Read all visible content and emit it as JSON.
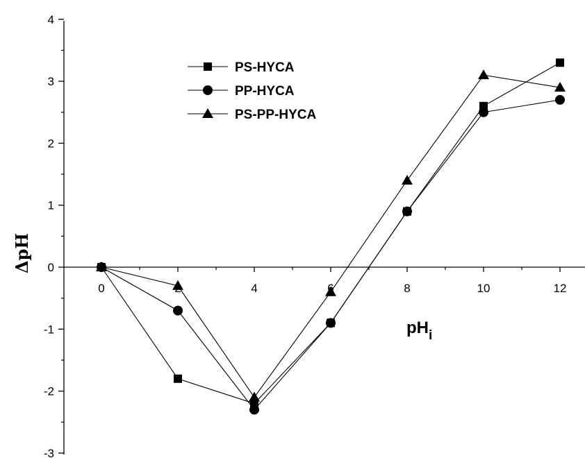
{
  "chart_data": {
    "type": "line",
    "xlabel": "pH",
    "xlabel_subscript": "i",
    "ylabel": "ΔpH",
    "xlim": [
      -2.5,
      13.0
    ],
    "ylim": [
      -3,
      4
    ],
    "x_ticks": [
      0,
      2,
      4,
      6,
      8,
      10,
      12
    ],
    "y_ticks": [
      -3,
      -2,
      -1,
      0,
      1,
      2,
      3,
      4
    ],
    "grid": false,
    "legend_position": "top-center",
    "series": [
      {
        "name": "PS-HYCA",
        "marker": "square",
        "x": [
          0,
          2,
          4,
          6,
          8,
          10,
          12
        ],
        "y": [
          0,
          -1.8,
          -2.2,
          -0.9,
          0.9,
          2.6,
          3.3
        ]
      },
      {
        "name": "PP-HYCA",
        "marker": "circle",
        "x": [
          0,
          2,
          4,
          6,
          8,
          10,
          12
        ],
        "y": [
          0,
          -0.7,
          -2.3,
          -0.9,
          0.9,
          2.5,
          2.7
        ]
      },
      {
        "name": "PS-PP-HYCA",
        "marker": "triangle",
        "x": [
          0,
          2,
          4,
          6,
          8,
          10,
          12
        ],
        "y": [
          0,
          -0.3,
          -2.1,
          -0.4,
          1.4,
          3.1,
          2.9
        ]
      }
    ]
  }
}
